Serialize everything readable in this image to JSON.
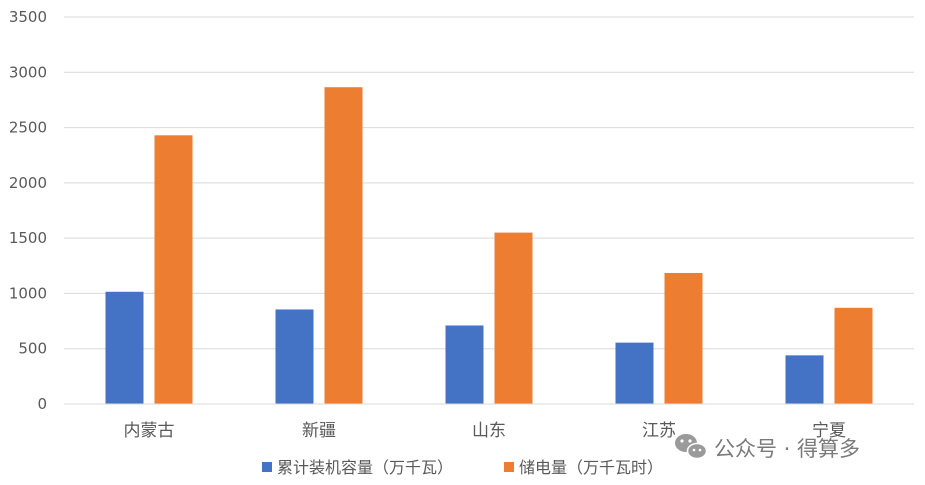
{
  "chart_data": {
    "type": "bar",
    "title": "",
    "xlabel": "",
    "ylabel": "",
    "categories": [
      "内蒙古",
      "新疆",
      "山东",
      "江苏",
      "宁夏"
    ],
    "series": [
      {
        "name": "累计装机容量（万千瓦）",
        "values": [
          1015,
          855,
          710,
          555,
          440
        ],
        "color": "#4472C4"
      },
      {
        "name": "储电量（万千瓦时）",
        "values": [
          2430,
          2865,
          1550,
          1185,
          870
        ],
        "color": "#ED7D31"
      }
    ],
    "ylim": [
      0,
      3500
    ],
    "yticks": [
      0,
      500,
      1000,
      1500,
      2000,
      2500,
      3000,
      3500
    ],
    "grid": true,
    "legend_position": "bottom"
  },
  "watermark": {
    "text": "公众号 · 得算多",
    "icon": "wechat-icon"
  }
}
